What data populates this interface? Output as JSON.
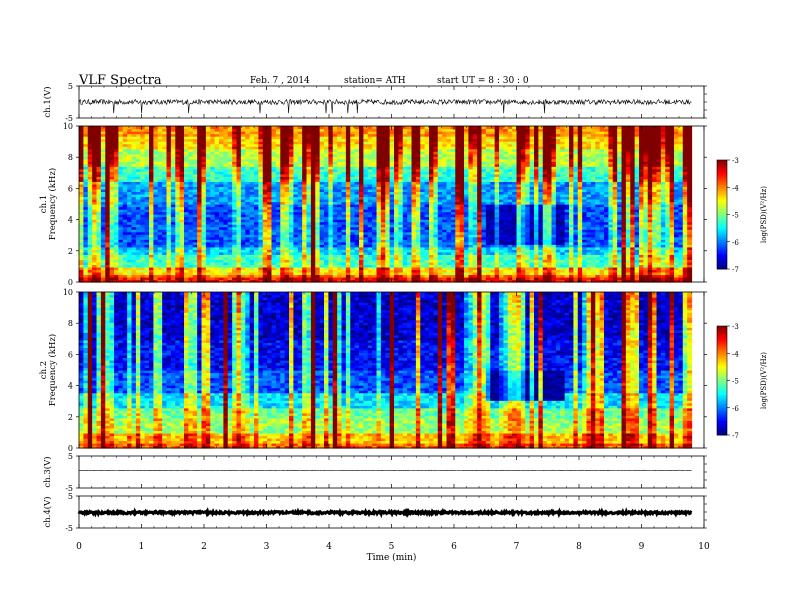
{
  "header": {
    "title": "VLF  Spectra",
    "date": "Feb. 7  , 2014",
    "station": "station= ATH",
    "start": "start  UT  =   8  : 30 : 0"
  },
  "chart_data": [
    {
      "type": "line",
      "panel": "ch1-waveform",
      "ylabel": "ch.1(V)",
      "ylim": [
        -5,
        5
      ],
      "yticks": [
        "5",
        "-5"
      ],
      "xlim": [
        0,
        10
      ],
      "data_end_min": 9.8,
      "baseline": 0,
      "noise_amplitude": 0.8,
      "spike_times_min": [
        0.55,
        1.0,
        1.75,
        2.9,
        3.35,
        3.95,
        4.05,
        4.3,
        4.45,
        6.8,
        7.45
      ]
    },
    {
      "type": "heatmap",
      "panel": "ch1-spectrogram",
      "ylabel_lines": [
        "ch.1",
        "Frequency  (kHz)"
      ],
      "ylim": [
        0,
        10
      ],
      "yticks": [
        "0",
        "2",
        "4",
        "6",
        "8",
        "10"
      ],
      "xlim": [
        0,
        10
      ],
      "data_end_min": 9.8,
      "colorbar": {
        "label": "log(PSD)(V²/Hz)",
        "range": [
          -7,
          -3
        ],
        "ticks": [
          "-3",
          "-4",
          "-5",
          "-6",
          "-7"
        ]
      },
      "bands": [
        {
          "f": [
            0.0,
            0.25
          ],
          "value": -3.6
        },
        {
          "f": [
            0.25,
            0.55
          ],
          "value": -4.0
        },
        {
          "f": [
            0.55,
            1.0
          ],
          "value": -4.5
        },
        {
          "f": [
            1.0,
            1.7
          ],
          "value": -5.3
        },
        {
          "f": [
            1.7,
            2.2
          ],
          "value": -5.7
        },
        {
          "f": [
            2.2,
            5.0
          ],
          "value": -6.2
        },
        {
          "f": [
            5.0,
            6.5
          ],
          "value": -5.9
        },
        {
          "f": [
            6.5,
            7.5
          ],
          "value": -5.3
        },
        {
          "f": [
            7.5,
            8.5
          ],
          "value": -4.8
        },
        {
          "f": [
            8.5,
            9.3
          ],
          "value": -4.4
        },
        {
          "f": [
            9.3,
            10.0
          ],
          "value": -4.1
        }
      ],
      "quiet_interval": {
        "t": [
          6.5,
          7.8
        ],
        "f": [
          2.5,
          5.0
        ],
        "value": -6.8
      }
    },
    {
      "type": "heatmap",
      "panel": "ch2-spectrogram",
      "ylabel_lines": [
        "ch.2",
        "Frequency  (kHz)"
      ],
      "ylim": [
        0,
        10
      ],
      "yticks": [
        "0",
        "2",
        "4",
        "6",
        "8",
        "10"
      ],
      "xlim": [
        0,
        10
      ],
      "data_end_min": 9.8,
      "colorbar": {
        "label": "log(PSD)(V²/Hz)",
        "range": [
          -7,
          -3
        ],
        "ticks": [
          "-3",
          "-4",
          "-5",
          "-6",
          "-7"
        ]
      },
      "bands": [
        {
          "f": [
            0.0,
            0.4
          ],
          "value": -3.9
        },
        {
          "f": [
            0.4,
            1.0
          ],
          "value": -4.3
        },
        {
          "f": [
            1.0,
            2.0
          ],
          "value": -4.9
        },
        {
          "f": [
            2.0,
            2.6
          ],
          "value": -5.1
        },
        {
          "f": [
            2.6,
            3.6
          ],
          "value": -5.6
        },
        {
          "f": [
            3.6,
            5.0
          ],
          "value": -6.2
        },
        {
          "f": [
            5.0,
            7.0
          ],
          "value": -6.5
        },
        {
          "f": [
            7.0,
            10.0
          ],
          "value": -6.7
        }
      ],
      "quiet_interval": {
        "t": [
          6.5,
          7.8
        ],
        "f": [
          3.0,
          5.0
        ],
        "value": -6.9
      }
    },
    {
      "type": "line",
      "panel": "ch3-waveform",
      "ylabel": "ch.3(V)",
      "ylim": [
        -5,
        5
      ],
      "yticks": [
        "5",
        "-5"
      ],
      "xlim": [
        0,
        10
      ],
      "data_end_min": 9.8,
      "baseline": 0.5,
      "noise_amplitude": 0.05
    },
    {
      "type": "line",
      "panel": "ch4-waveform",
      "ylabel": "ch.4(V)",
      "ylim": [
        -5,
        5
      ],
      "yticks": [
        "5",
        "-5"
      ],
      "xlim": [
        0,
        10
      ],
      "data_end_min": 9.8,
      "baseline": -0.2,
      "noise_amplitude": 0.35
    }
  ],
  "xaxis": {
    "label": "Time  (min)",
    "ticks": [
      "0",
      "1",
      "2",
      "3",
      "4",
      "5",
      "6",
      "7",
      "8",
      "9",
      "10"
    ]
  }
}
